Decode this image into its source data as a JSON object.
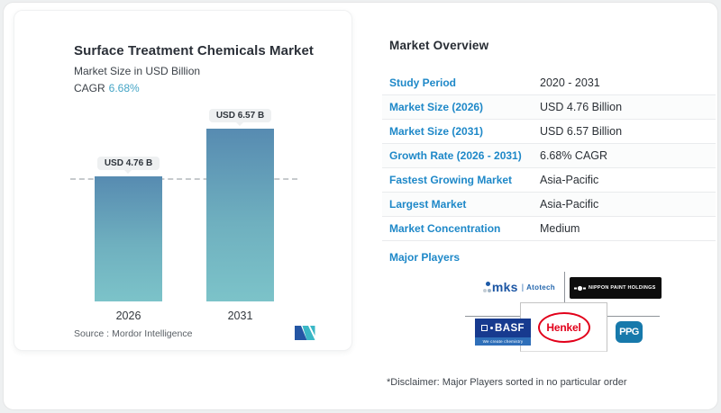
{
  "left_card": {
    "title": "Surface Treatment Chemicals Market",
    "subtitle": "Market Size in USD Billion",
    "cagr_label": "CAGR",
    "cagr_value": "6.68%",
    "source_label": "Source :",
    "source_value": "Mordor Intelligence"
  },
  "chart_data": {
    "type": "bar",
    "title": "Surface Treatment Chemicals Market",
    "ylabel": "Market Size in USD Billion",
    "categories": [
      "2026",
      "2031"
    ],
    "values": [
      4.76,
      6.57
    ],
    "bar_labels": [
      "USD 4.76 B",
      "USD 6.57 B"
    ],
    "unit": "USD Billion",
    "ylim": [
      0,
      7.2
    ],
    "reference_line_y": 4.76,
    "grid": false,
    "colors": {
      "bar_gradient_top": "#578bb1",
      "bar_gradient_bottom": "#7cc3c9",
      "accent": "#45a5c6"
    }
  },
  "overview": {
    "heading": "Market Overview",
    "rows": [
      {
        "label": "Study Period",
        "value": "2020 - 2031"
      },
      {
        "label": "Market Size (2026)",
        "value": "USD 4.76 Billion"
      },
      {
        "label": "Market Size (2031)",
        "value": "USD 6.57 Billion"
      },
      {
        "label": "Growth Rate (2026 - 2031)",
        "value": "6.68% CAGR"
      },
      {
        "label": "Fastest Growing Market",
        "value": "Asia-Pacific"
      },
      {
        "label": "Largest Market",
        "value": "Asia-Pacific"
      },
      {
        "label": "Market Concentration",
        "value": "Medium"
      }
    ],
    "major_players_label": "Major Players",
    "disclaimer": "*Disclaimer: Major Players sorted in no particular order",
    "label_color": "#1e88c8"
  },
  "players": {
    "mks": {
      "word": "mks",
      "sep": "|",
      "suffix": "Atotech"
    },
    "nippon": {
      "text": "NIPPON PAINT HOLDINGS"
    },
    "basf": {
      "word": "BASF",
      "tagline": "We create chemistry"
    },
    "henkel": {
      "word": "Henkel"
    },
    "ppg": {
      "word": "PPG"
    }
  }
}
